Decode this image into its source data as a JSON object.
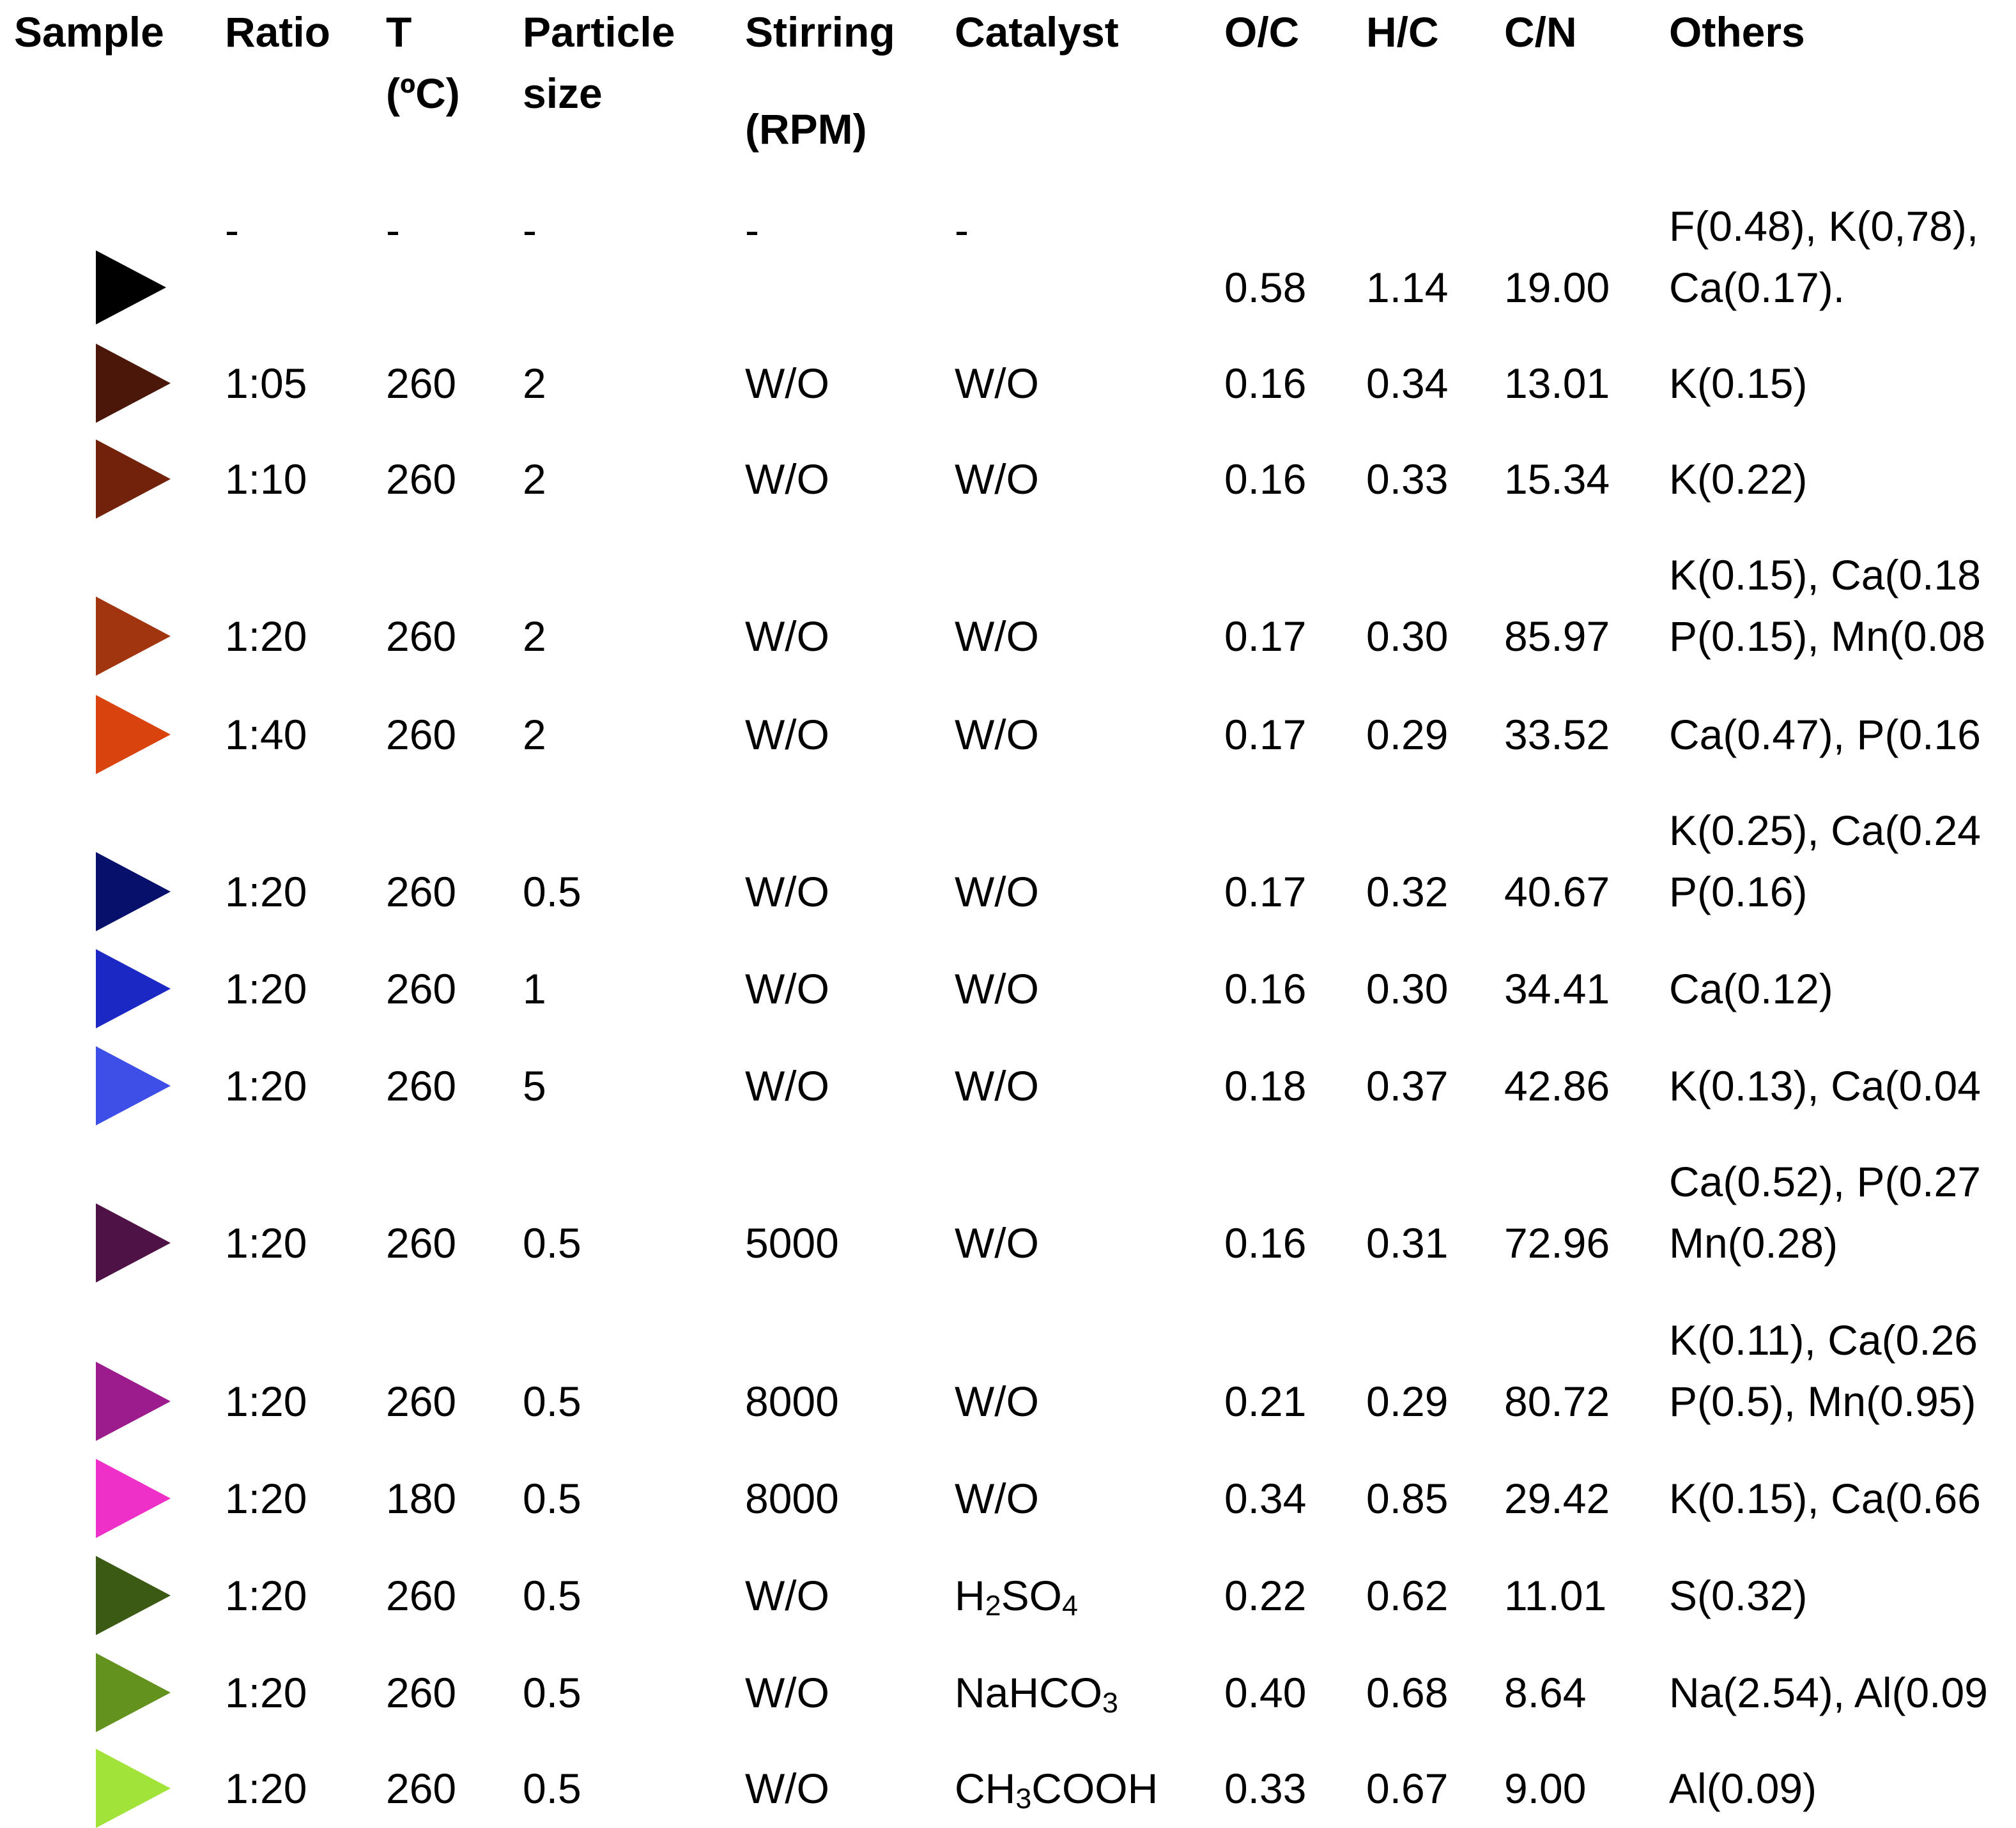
{
  "headers": {
    "sample": "Sample",
    "ratio": "Ratio",
    "t_line1": "T",
    "t_line2": "(ºC)",
    "particle_line1": "Particle",
    "particle_line2": "size",
    "stirring_line1": "Stirring",
    "stirring_line2": "(RPM)",
    "catalyst": "Catalyst",
    "oc": "O/C",
    "hc": "H/C",
    "cn": "C/N",
    "others": "Others"
  },
  "rows": [
    {
      "color": "#000000",
      "ratio": "-",
      "t": "-",
      "particle": "-",
      "stirring": "-",
      "catalyst": "-",
      "oc": "0.58",
      "hc": "1.14",
      "cn": "19.00",
      "others": [
        "F(0.48), K(0,78),",
        "Ca(0.17)."
      ]
    },
    {
      "color": "#4a1708",
      "ratio": "1:05",
      "t": "260",
      "particle": "2",
      "stirring": "W/O",
      "catalyst": "W/O",
      "oc": "0.16",
      "hc": "0.34",
      "cn": "13.01",
      "others": [
        "K(0.15)"
      ]
    },
    {
      "color": "#72220a",
      "ratio": "1:10",
      "t": "260",
      "particle": "2",
      "stirring": "W/O",
      "catalyst": "W/O",
      "oc": "0.16",
      "hc": "0.33",
      "cn": "15.34",
      "others": [
        "K(0.22)"
      ]
    },
    {
      "color": "#a03510",
      "ratio": "1:20",
      "t": "260",
      "particle": "2",
      "stirring": "W/O",
      "catalyst": "W/O",
      "oc": "0.17",
      "hc": "0.30",
      "cn": "85.97",
      "others": [
        "K(0.15), Ca(0.18",
        "P(0.15), Mn(0.08"
      ]
    },
    {
      "color": "#d9440e",
      "ratio": "1:40",
      "t": "260",
      "particle": "2",
      "stirring": "W/O",
      "catalyst": "W/O",
      "oc": "0.17",
      "hc": "0.29",
      "cn": "33.52",
      "others": [
        "Ca(0.47), P(0.16"
      ]
    },
    {
      "color": "#07106b",
      "ratio": "1:20",
      "t": "260",
      "particle": "0.5",
      "stirring": "W/O",
      "catalyst": "W/O",
      "oc": "0.17",
      "hc": "0.32",
      "cn": "40.67",
      "others": [
        "K(0.25), Ca(0.24",
        "P(0.16)"
      ]
    },
    {
      "color": "#1c28c4",
      "ratio": "1:20",
      "t": "260",
      "particle": "1",
      "stirring": "W/O",
      "catalyst": "W/O",
      "oc": "0.16",
      "hc": "0.30",
      "cn": "34.41",
      "others": [
        "Ca(0.12)"
      ]
    },
    {
      "color": "#3d4fe6",
      "ratio": "1:20",
      "t": "260",
      "particle": "5",
      "stirring": "W/O",
      "catalyst": "W/O",
      "oc": "0.18",
      "hc": "0.37",
      "cn": "42.86",
      "others": [
        "K(0.13), Ca(0.04"
      ]
    },
    {
      "color": "#4e1247",
      "ratio": "1:20",
      "t": "260",
      "particle": "0.5",
      "stirring": "5000",
      "catalyst": "W/O",
      "oc": "0.16",
      "hc": "0.31",
      "cn": "72.96",
      "others": [
        "Ca(0.52), P(0.27",
        "Mn(0.28)"
      ]
    },
    {
      "color": "#9c1c8e",
      "ratio": "1:20",
      "t": "260",
      "particle": "0.5",
      "stirring": "8000",
      "catalyst": "W/O",
      "oc": "0.21",
      "hc": "0.29",
      "cn": "80.72",
      "others": [
        "K(0.11), Ca(0.26",
        "P(0.5), Mn(0.95)"
      ]
    },
    {
      "color": "#ee2fc8",
      "ratio": "1:20",
      "t": "180",
      "particle": "0.5",
      "stirring": "8000",
      "catalyst": "W/O",
      "oc": "0.34",
      "hc": "0.85",
      "cn": "29.42",
      "others": [
        "K(0.15), Ca(0.66"
      ]
    },
    {
      "color": "#3b5a14",
      "ratio": "1:20",
      "t": "260",
      "particle": "0.5",
      "stirring": "W/O",
      "catalyst": [
        "H",
        "2",
        "SO",
        "4"
      ],
      "oc": "0.22",
      "hc": "0.62",
      "cn": "11.01",
      "others": [
        "S(0.32)"
      ]
    },
    {
      "color": "#64921f",
      "ratio": "1:20",
      "t": "260",
      "particle": "0.5",
      "stirring": "W/O",
      "catalyst": [
        "NaHCO",
        "3"
      ],
      "oc": "0.40",
      "hc": "0.68",
      "cn": "8.64",
      "others": [
        "Na(2.54), Al(0.09"
      ]
    },
    {
      "color": "#a2e33a",
      "ratio": "1:20",
      "t": "260",
      "particle": "0.5",
      "stirring": "W/O",
      "catalyst": [
        "CH",
        "3",
        "COOH"
      ],
      "oc": "0.33",
      "hc": "0.67",
      "cn": "9.00",
      "others": [
        "Al(0.09)"
      ]
    }
  ]
}
